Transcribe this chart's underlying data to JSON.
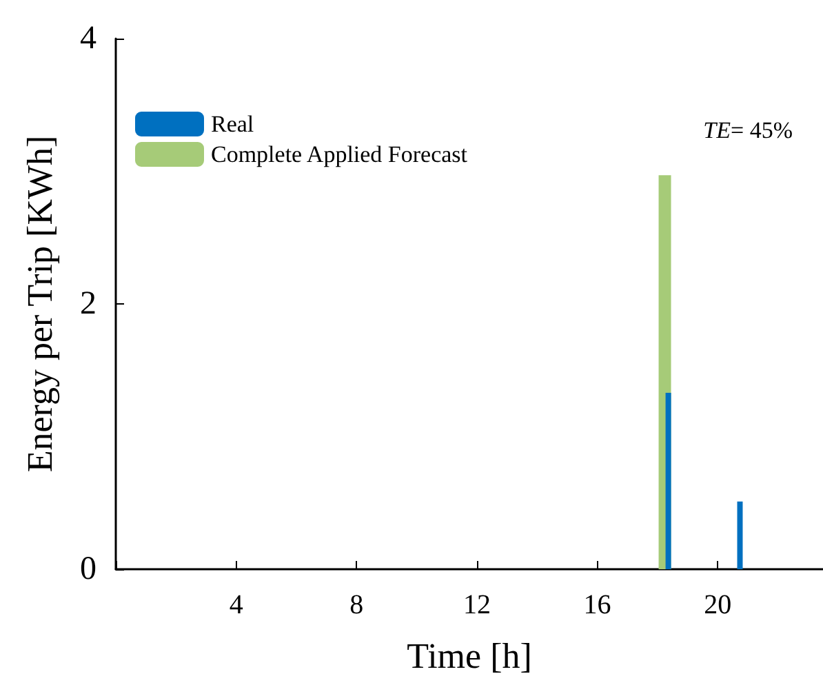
{
  "chart_data": {
    "type": "bar",
    "xlabel": "Time [h]",
    "ylabel": "Energy per Trip [KWh]",
    "xlim": [
      0,
      23.5
    ],
    "xticks": [
      {
        "value": 0,
        "label": null
      },
      4,
      8,
      12,
      16,
      20
    ],
    "ylim": [
      0,
      4
    ],
    "yticks": [
      0,
      2,
      4
    ],
    "grid": false,
    "legend": "top left",
    "annotations": [
      "TE= 45%"
    ],
    "series": [
      {
        "name": "Complete Applied Forecast",
        "color": "#a6cb78",
        "x": [
          18.13
        ],
        "values": [
          2.97
        ]
      },
      {
        "name": "Real",
        "color": "#0070c0",
        "x": [
          18.36,
          20.74
        ],
        "values": [
          1.33,
          0.51
        ]
      }
    ]
  }
}
